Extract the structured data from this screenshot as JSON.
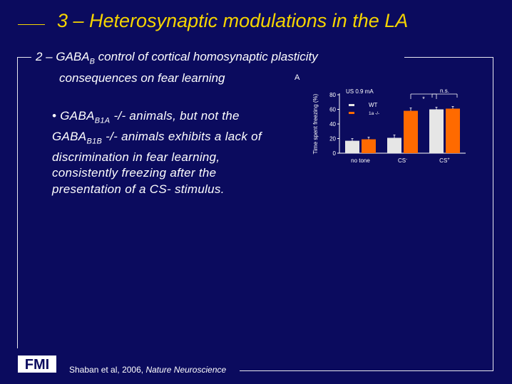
{
  "header": {
    "title": "3 – Heterosynaptic modulations in the LA"
  },
  "subtitle": {
    "prefix": "2 – GABA",
    "sub": "B",
    "suffix": " control of cortical homosynaptic plasticity",
    "line2": "consequences on fear learning"
  },
  "bullet": {
    "marker": "• ",
    "t1": "GABA",
    "s1": "B1A",
    "t2": " -/- animals, but not the GABA",
    "s2": "B1B",
    "t3": " -/- animals exhibits a lack of discrimination in fear learning, consistently freezing after the presentation of a CS- stimulus."
  },
  "chart_data": {
    "type": "bar",
    "panel_label": "A",
    "condition_label": "US 0.9 mA",
    "ylabel": "Time spent freezing (%)",
    "ylim": [
      0,
      80
    ],
    "yticks": [
      "0",
      "20",
      "40",
      "60",
      "80"
    ],
    "categories": [
      "no tone",
      "CS-",
      "CS+"
    ],
    "category_labels": [
      {
        "text": "no tone",
        "sup": ""
      },
      {
        "text": "CS",
        "sup": "-"
      },
      {
        "text": "CS",
        "sup": "+"
      }
    ],
    "series": [
      {
        "name": "WT",
        "color": "#e6e6e6",
        "values": [
          17,
          21,
          60
        ],
        "errors": [
          3,
          4,
          3
        ]
      },
      {
        "name": "1a -/-",
        "color": "#ff6a00",
        "values": [
          19,
          58,
          61
        ],
        "errors": [
          3,
          4,
          3
        ]
      }
    ],
    "legend_position": "top-left",
    "annotations": [
      {
        "label": "*",
        "between": [
          "CS-",
          "CS+"
        ]
      },
      {
        "label": "n.s.",
        "between": [
          "CS+ WT",
          "CS+ 1a -/-"
        ]
      }
    ]
  },
  "footer": {
    "logo_text": "FMI",
    "citation_authors": "Shaban et al, ",
    "citation_year": "2006, ",
    "citation_journal": "Nature Neuroscience"
  }
}
